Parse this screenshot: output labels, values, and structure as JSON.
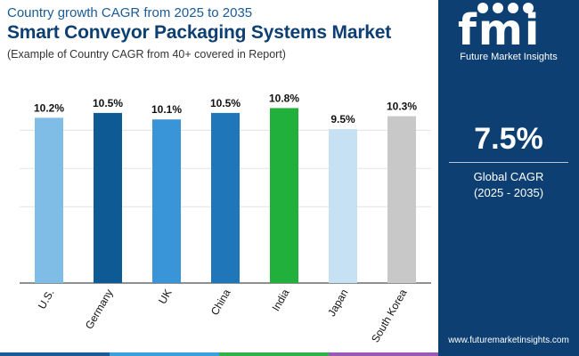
{
  "header": {
    "subtitle": "Country growth CAGR from 2025 to 2035",
    "title": "Smart Conveyor Packaging Systems Market",
    "note": "(Example of Country CAGR from 40+ covered in Report)"
  },
  "brand": {
    "logo_letters": "fmi",
    "name": "Future Market Insights",
    "website": "www.futuremarketinsights.com"
  },
  "summary": {
    "value": "7.5%",
    "label": "Global CAGR",
    "period": "(2025 - 2035)"
  },
  "colors": {
    "sidebar": "#0d3f73",
    "footer": [
      "#1a5a96",
      "#3aa0dc",
      "#2db34a",
      "#9b59b6"
    ]
  },
  "chart_data": {
    "type": "bar",
    "categories": [
      "U.S.",
      "Germany",
      "UK",
      "China",
      "India",
      "Japan",
      "South Korea"
    ],
    "values": [
      10.2,
      10.5,
      10.1,
      10.5,
      10.8,
      9.5,
      10.3
    ],
    "labels": [
      "10.2%",
      "10.5%",
      "10.1%",
      "10.5%",
      "10.8%",
      "9.5%",
      "10.3%"
    ],
    "colors": [
      "#7fbce6",
      "#0d5a94",
      "#3a95d8",
      "#1f76b8",
      "#22b03c",
      "#c5e1f3",
      "#c8c8c8"
    ],
    "ylim": [
      0,
      11
    ],
    "grid": true,
    "title": "",
    "xlabel": "",
    "ylabel": ""
  }
}
